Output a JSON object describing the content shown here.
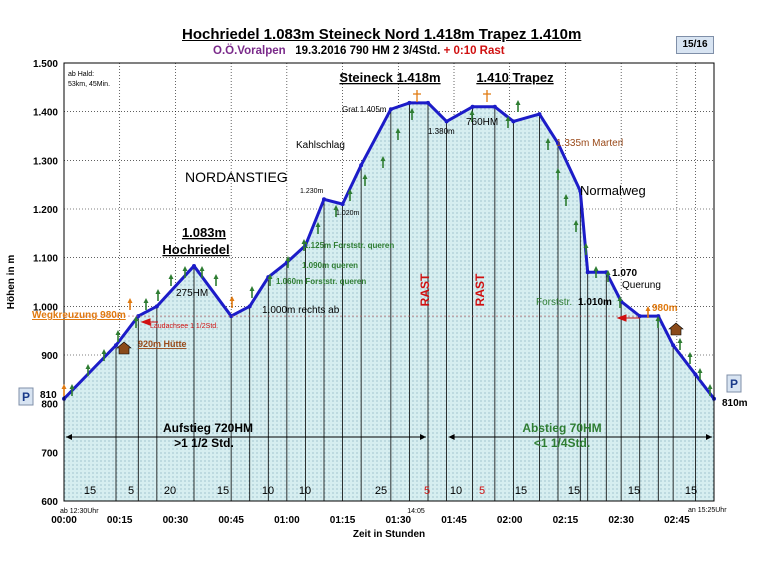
{
  "title": "Hochriedel 1.083m  Steineck Nord 1.418m  Trapez 1.410m",
  "subtitle": {
    "region": "O.Ö.Voralpen",
    "details": "19.3.2016    790  HM    2  3/4Std.",
    "rast": "+ 0:10  Rast"
  },
  "page_badge": "15/16",
  "colors": {
    "line": "#1c1cc8",
    "fill": "#d6eef0",
    "label_green": "#2e7d32",
    "label_orange": "#e07a10",
    "label_red": "#d01010",
    "label_brown": "#9a4a1a"
  },
  "icons": [
    "parking-sign-icon",
    "hut-icon",
    "summit-cross-icon",
    "uphill-arrow-icon",
    "downhill-arrow-icon",
    "junction-arrow-icon"
  ],
  "chart_data": {
    "type": "area",
    "xlabel": "Zeit in Stunden",
    "ylabel": "Höhen in m",
    "xlim": [
      0,
      175
    ],
    "ylim": [
      600,
      1500
    ],
    "x_ticks": [
      "00:00",
      "00:15",
      "00:30",
      "00:45",
      "01:00",
      "01:15",
      "01:30",
      "01:45",
      "02:00",
      "02:15",
      "02:30",
      "02:45"
    ],
    "y_ticks": [
      "600",
      "700",
      "800",
      "900",
      "1.000",
      "1.100",
      "1.200",
      "1.300",
      "1.400",
      "1.500"
    ],
    "grid": true,
    "series": [
      {
        "x": [
          0,
          14,
          20,
          25,
          35,
          45,
          50,
          55,
          60,
          65,
          70,
          75,
          80,
          88,
          93,
          98,
          103,
          110,
          116,
          121,
          128,
          133,
          139,
          141,
          146,
          150,
          155,
          160,
          164,
          170,
          175
        ],
        "y": [
          810,
          920,
          980,
          1000,
          1083,
          980,
          1000,
          1060,
          1090,
          1125,
          1220,
          1210,
          1290,
          1405,
          1418,
          1418,
          1380,
          1410,
          1410,
          1380,
          1395,
          1335,
          1237,
          1070,
          1070,
          1010,
          980,
          980,
          920,
          860,
          810
        ]
      }
    ],
    "segments": [
      "15",
      "5",
      "20",
      "15",
      "10",
      "10",
      "25",
      "5",
      "10",
      "5",
      "15",
      "15",
      "15",
      "15"
    ],
    "rast_labels": [
      "RAST",
      "RAST"
    ],
    "annotations": {
      "ab_halt": [
        "ab Hald:",
        "53km, 45Min."
      ],
      "start_time": "ab 12:30Uhr",
      "end_time": "an 15:25Uhr",
      "mid_time": "14:05",
      "peak1_title": [
        "1.083m",
        "Hochriedel"
      ],
      "peak2_title": "Steineck 1.418m",
      "peak3_title": "1.410  Trapez",
      "nordanstieg": "NORDANSTIEG",
      "normalweg": "Normalweg",
      "kahlschlag": "Kahlschlag",
      "grat": "Grat 1.405m",
      "h1380": "1.380m",
      "h760": "760HM",
      "h1335": "1.335m Marterl",
      "h1230": "1.230m",
      "h1020": "1.020m",
      "h275": "275HM",
      "f1125": "1.125m Forststr. queren",
      "f1090": "1.090m queren",
      "f1060": "1.060m Forststr. queren",
      "rechts": "1.000m rechts ab",
      "q1070": [
        "1.070",
        "Querung"
      ],
      "forststr": "Forststr.",
      "f1010": "1.010m",
      "h980r": "980m",
      "wegkreuzung": "Wegkreuzung 980m",
      "laudachsee": "Laudachsee  1 1/2Std.",
      "huette": "920m Hütte",
      "h810l": "810",
      "h810r": "810m",
      "p": "P",
      "aufstieg": [
        "Aufstieg  720HM",
        ">1 1/2  Std."
      ],
      "abstieg": [
        "Abstieg  70HM",
        "<1 1/4Std."
      ]
    }
  }
}
